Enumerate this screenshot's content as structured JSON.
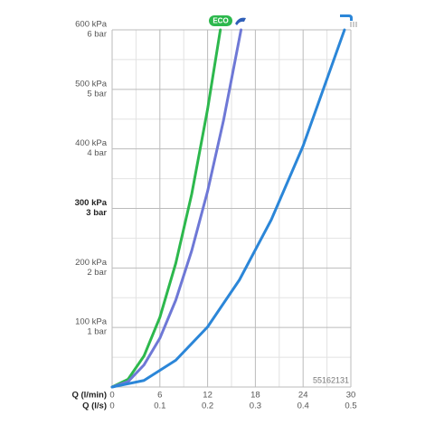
{
  "chart_data": {
    "type": "line",
    "xlabel": "Q (l/min)",
    "x2label": "Q (l/s)",
    "xlim": [
      0,
      30
    ],
    "xticks": [
      0,
      6,
      12,
      18,
      24,
      30
    ],
    "x_minor_ticks": [
      3,
      9,
      15,
      21,
      27
    ],
    "x2lim": [
      0,
      0.5
    ],
    "x2ticks": [
      0,
      0.1,
      0.2,
      0.3,
      0.4,
      0.5
    ],
    "ylim": [
      0,
      600
    ],
    "yticks": [
      {
        "value": 100,
        "label": "100 kPa"
      },
      {
        "value": 200,
        "label": "200 kPa"
      },
      {
        "value": 300,
        "label": "300 kPa"
      },
      {
        "value": 400,
        "label": "400 kPa"
      },
      {
        "value": 500,
        "label": "500 kPa"
      },
      {
        "value": 600,
        "label": "600 kPa"
      }
    ],
    "yticks_bar": [
      {
        "value": 100,
        "label": "1 bar"
      },
      {
        "value": 200,
        "label": "2 bar"
      },
      {
        "value": 300,
        "label": "3 bar"
      },
      {
        "value": 400,
        "label": "4 bar"
      },
      {
        "value": 500,
        "label": "5 bar"
      },
      {
        "value": 600,
        "label": "6 bar"
      }
    ],
    "y_minor_ticks": [
      50,
      150,
      250,
      350,
      450,
      550
    ],
    "bold_ytick": 300,
    "grid": true,
    "eco_label": "ECO",
    "code": "55162131",
    "series": [
      {
        "color": "#2db84d",
        "x": [
          0,
          2,
          4,
          6,
          8,
          10,
          12,
          13.6
        ],
        "values": [
          0,
          13,
          52,
          117,
          208,
          324,
          467,
          600
        ]
      },
      {
        "color": "#6e78d6",
        "x": [
          0,
          2,
          4,
          6,
          8,
          10,
          12,
          14,
          16.2
        ],
        "values": [
          0,
          9,
          37,
          82,
          146,
          229,
          329,
          448,
          600
        ]
      },
      {
        "color": "#2b86d8",
        "x": [
          0,
          4,
          8,
          12,
          16,
          20,
          24,
          29.2
        ],
        "values": [
          0,
          11,
          45,
          101,
          180,
          281,
          405,
          600
        ]
      }
    ]
  }
}
